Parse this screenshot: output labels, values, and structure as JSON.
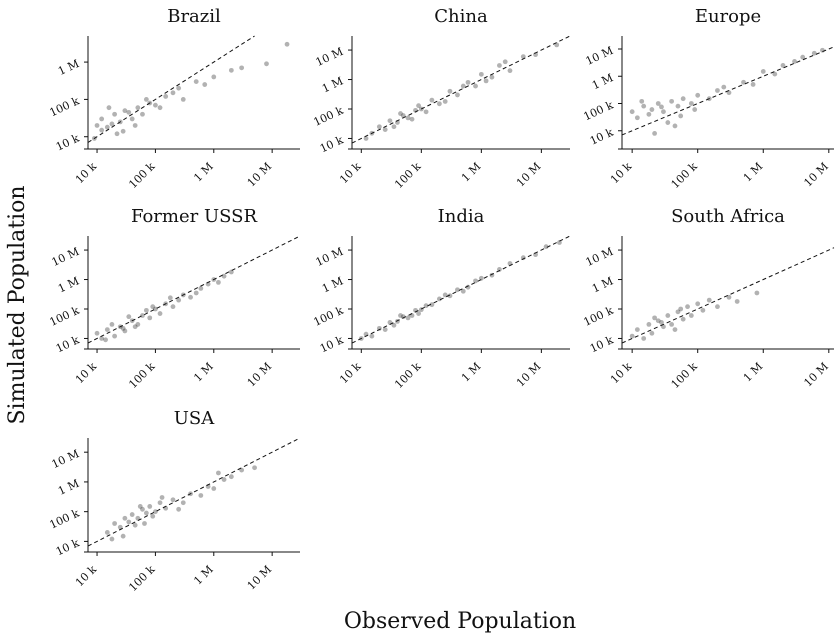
{
  "figure": {
    "xlabel": "Observed Population",
    "ylabel": "Simulated Population"
  },
  "chart_data": [
    {
      "type": "scatter",
      "title": "Brazil",
      "xscale": "log",
      "yscale": "log",
      "xlim": [
        7000,
        30000000
      ],
      "ylim": [
        6000,
        5000000
      ],
      "xticks": [
        10000,
        100000,
        1000000,
        10000000
      ],
      "xticklabels": [
        "10 k",
        "100 k",
        "1 M",
        "10 M"
      ],
      "yticks": [
        10000,
        100000,
        1000000
      ],
      "yticklabels": [
        "10 k",
        "100 k",
        "1 M"
      ],
      "reference_line": "y = x (dashed)",
      "points": [
        [
          10000,
          20000
        ],
        [
          12000,
          30000
        ],
        [
          15000,
          18000
        ],
        [
          20000,
          40000
        ],
        [
          25000,
          25000
        ],
        [
          30000,
          50000
        ],
        [
          40000,
          30000
        ],
        [
          50000,
          60000
        ],
        [
          60000,
          40000
        ],
        [
          80000,
          80000
        ],
        [
          100000,
          70000
        ],
        [
          150000,
          120000
        ],
        [
          200000,
          150000
        ],
        [
          300000,
          100000
        ],
        [
          500000,
          300000
        ],
        [
          1000000,
          400000
        ],
        [
          3000000,
          700000
        ],
        [
          8000000,
          900000
        ],
        [
          18000000,
          3000000
        ],
        [
          12000,
          15000
        ],
        [
          18000,
          22000
        ],
        [
          22000,
          12000
        ],
        [
          35000,
          45000
        ],
        [
          45000,
          20000
        ],
        [
          70000,
          100000
        ],
        [
          120000,
          60000
        ],
        [
          250000,
          200000
        ],
        [
          700000,
          250000
        ],
        [
          2000000,
          600000
        ],
        [
          16000,
          60000
        ],
        [
          9000,
          9000
        ],
        [
          28000,
          14000
        ]
      ]
    },
    {
      "type": "scatter",
      "title": "China",
      "xscale": "log",
      "yscale": "log",
      "xlim": [
        7000,
        30000000
      ],
      "ylim": [
        6000,
        30000000
      ],
      "xticks": [
        10000,
        100000,
        1000000,
        10000000
      ],
      "xticklabels": [
        "10 k",
        "100 k",
        "1 M",
        "10 M"
      ],
      "yticks": [
        10000,
        100000,
        1000000,
        10000000
      ],
      "yticklabels": [
        "10 k",
        "100 k",
        "1 M",
        "10 M"
      ],
      "reference_line": "y = x (dashed)",
      "points": [
        [
          12000,
          10000
        ],
        [
          15000,
          15000
        ],
        [
          20000,
          25000
        ],
        [
          25000,
          20000
        ],
        [
          30000,
          40000
        ],
        [
          40000,
          35000
        ],
        [
          50000,
          60000
        ],
        [
          60000,
          50000
        ],
        [
          80000,
          90000
        ],
        [
          100000,
          100000
        ],
        [
          120000,
          80000
        ],
        [
          150000,
          200000
        ],
        [
          200000,
          150000
        ],
        [
          300000,
          400000
        ],
        [
          400000,
          300000
        ],
        [
          600000,
          800000
        ],
        [
          800000,
          600000
        ],
        [
          1000000,
          1500000
        ],
        [
          1500000,
          1200000
        ],
        [
          2000000,
          3000000
        ],
        [
          3000000,
          2000000
        ],
        [
          5000000,
          6000000
        ],
        [
          8000000,
          7000000
        ],
        [
          18000000,
          15000000
        ],
        [
          35000,
          25000
        ],
        [
          70000,
          45000
        ],
        [
          250000,
          180000
        ],
        [
          500000,
          600000
        ],
        [
          1200000,
          900000
        ],
        [
          45000,
          70000
        ],
        [
          90000,
          130000
        ],
        [
          2500000,
          4000000
        ]
      ]
    },
    {
      "type": "scatter",
      "title": "Europe",
      "xscale": "log",
      "yscale": "log",
      "xlim": [
        7000,
        12000000
      ],
      "ylim": [
        3000,
        30000000
      ],
      "xticks": [
        10000,
        100000,
        1000000,
        10000000
      ],
      "xticklabels": [
        "10 k",
        "100 k",
        "1 M",
        "10 M"
      ],
      "yticks": [
        10000,
        100000,
        1000000,
        10000000
      ],
      "yticklabels": [
        "10 k",
        "100 k",
        "1 M",
        "10 M"
      ],
      "reference_line": "y = x (dashed)",
      "points": [
        [
          10000,
          50000
        ],
        [
          12000,
          30000
        ],
        [
          15000,
          80000
        ],
        [
          18000,
          40000
        ],
        [
          20000,
          60000
        ],
        [
          25000,
          100000
        ],
        [
          30000,
          50000
        ],
        [
          40000,
          120000
        ],
        [
          50000,
          80000
        ],
        [
          60000,
          150000
        ],
        [
          80000,
          100000
        ],
        [
          100000,
          200000
        ],
        [
          150000,
          150000
        ],
        [
          200000,
          300000
        ],
        [
          300000,
          250000
        ],
        [
          500000,
          600000
        ],
        [
          700000,
          500000
        ],
        [
          1000000,
          1500000
        ],
        [
          2000000,
          2500000
        ],
        [
          4000000,
          5000000
        ],
        [
          8000000,
          9000000
        ],
        [
          35000,
          20000
        ],
        [
          45000,
          15000
        ],
        [
          22000,
          8000
        ],
        [
          90000,
          60000
        ],
        [
          250000,
          400000
        ],
        [
          1500000,
          1200000
        ],
        [
          14000,
          120000
        ],
        [
          28000,
          75000
        ],
        [
          55000,
          35000
        ],
        [
          3000000,
          3500000
        ],
        [
          6000000,
          7000000
        ]
      ]
    },
    {
      "type": "scatter",
      "title": "Former USSR",
      "xscale": "log",
      "yscale": "log",
      "xlim": [
        7000,
        30000000
      ],
      "ylim": [
        6000,
        30000000
      ],
      "xticks": [
        10000,
        100000,
        1000000,
        10000000
      ],
      "xticklabels": [
        "10 k",
        "100 k",
        "1 M",
        "10 M"
      ],
      "yticks": [
        10000,
        100000,
        1000000,
        10000000
      ],
      "yticklabels": [
        "10 k",
        "100 k",
        "1 M",
        "10 M"
      ],
      "reference_line": "y = x (dashed)",
      "points": [
        [
          10000,
          15000
        ],
        [
          12000,
          10000
        ],
        [
          15000,
          20000
        ],
        [
          20000,
          12000
        ],
        [
          25000,
          25000
        ],
        [
          30000,
          18000
        ],
        [
          40000,
          40000
        ],
        [
          50000,
          30000
        ],
        [
          60000,
          60000
        ],
        [
          80000,
          50000
        ],
        [
          100000,
          100000
        ],
        [
          120000,
          70000
        ],
        [
          150000,
          150000
        ],
        [
          200000,
          120000
        ],
        [
          300000,
          300000
        ],
        [
          400000,
          250000
        ],
        [
          600000,
          500000
        ],
        [
          800000,
          700000
        ],
        [
          1000000,
          1000000
        ],
        [
          1500000,
          1300000
        ],
        [
          2000000,
          1800000
        ],
        [
          18000,
          30000
        ],
        [
          35000,
          55000
        ],
        [
          70000,
          90000
        ],
        [
          250000,
          200000
        ],
        [
          500000,
          350000
        ],
        [
          45000,
          25000
        ],
        [
          90000,
          120000
        ],
        [
          14000,
          9000
        ],
        [
          28000,
          22000
        ],
        [
          180000,
          240000
        ],
        [
          1200000,
          800000
        ]
      ]
    },
    {
      "type": "scatter",
      "title": "India",
      "xscale": "log",
      "yscale": "log",
      "xlim": [
        7000,
        30000000
      ],
      "ylim": [
        6000,
        30000000
      ],
      "xticks": [
        10000,
        100000,
        1000000,
        10000000
      ],
      "xticklabels": [
        "10 k",
        "100 k",
        "1 M",
        "10 M"
      ],
      "yticks": [
        10000,
        100000,
        1000000,
        10000000
      ],
      "yticklabels": [
        "10 k",
        "100 k",
        "1 M",
        "10 M"
      ],
      "reference_line": "y = x (dashed)",
      "points": [
        [
          10000,
          10000
        ],
        [
          12000,
          14000
        ],
        [
          15000,
          12000
        ],
        [
          20000,
          22000
        ],
        [
          25000,
          20000
        ],
        [
          30000,
          35000
        ],
        [
          40000,
          38000
        ],
        [
          50000,
          55000
        ],
        [
          60000,
          50000
        ],
        [
          80000,
          90000
        ],
        [
          100000,
          95000
        ],
        [
          120000,
          130000
        ],
        [
          150000,
          140000
        ],
        [
          200000,
          220000
        ],
        [
          300000,
          280000
        ],
        [
          400000,
          450000
        ],
        [
          600000,
          550000
        ],
        [
          800000,
          900000
        ],
        [
          1000000,
          1100000
        ],
        [
          1500000,
          1400000
        ],
        [
          2000000,
          2200000
        ],
        [
          3000000,
          3500000
        ],
        [
          5000000,
          5500000
        ],
        [
          8000000,
          7000000
        ],
        [
          12000000,
          13000000
        ],
        [
          20000000,
          18000000
        ],
        [
          35000,
          28000
        ],
        [
          70000,
          60000
        ],
        [
          250000,
          300000
        ],
        [
          500000,
          400000
        ],
        [
          45000,
          60000
        ],
        [
          90000,
          70000
        ]
      ]
    },
    {
      "type": "scatter",
      "title": "South Africa",
      "xscale": "log",
      "yscale": "log",
      "xlim": [
        7000,
        12000000
      ],
      "ylim": [
        6000,
        30000000
      ],
      "xticks": [
        10000,
        100000,
        1000000,
        10000000
      ],
      "xticklabels": [
        "10 k",
        "100 k",
        "1 M",
        "10 M"
      ],
      "yticks": [
        10000,
        100000,
        1000000,
        10000000
      ],
      "yticklabels": [
        "10 k",
        "100 k",
        "1 M",
        "10 M"
      ],
      "reference_line": "y = x (dashed)",
      "points": [
        [
          10000,
          12000
        ],
        [
          12000,
          20000
        ],
        [
          15000,
          10000
        ],
        [
          18000,
          30000
        ],
        [
          20000,
          15000
        ],
        [
          25000,
          40000
        ],
        [
          30000,
          25000
        ],
        [
          35000,
          60000
        ],
        [
          40000,
          30000
        ],
        [
          50000,
          80000
        ],
        [
          60000,
          45000
        ],
        [
          70000,
          120000
        ],
        [
          80000,
          60000
        ],
        [
          100000,
          150000
        ],
        [
          120000,
          90000
        ],
        [
          150000,
          200000
        ],
        [
          200000,
          120000
        ],
        [
          300000,
          250000
        ],
        [
          400000,
          180000
        ],
        [
          800000,
          350000
        ],
        [
          22000,
          50000
        ],
        [
          45000,
          20000
        ],
        [
          55000,
          100000
        ],
        [
          28000,
          35000
        ]
      ]
    },
    {
      "type": "scatter",
      "title": "USA",
      "xscale": "log",
      "yscale": "log",
      "xlim": [
        7000,
        30000000
      ],
      "ylim": [
        6000,
        30000000
      ],
      "xticks": [
        10000,
        100000,
        1000000,
        10000000
      ],
      "xticklabels": [
        "10 k",
        "100 k",
        "1 M",
        "10 M"
      ],
      "yticks": [
        10000,
        100000,
        1000000,
        10000000
      ],
      "yticklabels": [
        "10 k",
        "100 k",
        "1 M",
        "10 M"
      ],
      "reference_line": "y = x (dashed)",
      "points": [
        [
          15000,
          20000
        ],
        [
          20000,
          40000
        ],
        [
          25000,
          30000
        ],
        [
          30000,
          60000
        ],
        [
          35000,
          45000
        ],
        [
          40000,
          80000
        ],
        [
          50000,
          60000
        ],
        [
          60000,
          120000
        ],
        [
          70000,
          90000
        ],
        [
          80000,
          150000
        ],
        [
          100000,
          100000
        ],
        [
          120000,
          200000
        ],
        [
          150000,
          130000
        ],
        [
          200000,
          250000
        ],
        [
          300000,
          200000
        ],
        [
          400000,
          400000
        ],
        [
          600000,
          350000
        ],
        [
          800000,
          700000
        ],
        [
          1000000,
          600000
        ],
        [
          1500000,
          1200000
        ],
        [
          2000000,
          1500000
        ],
        [
          3000000,
          2500000
        ],
        [
          5000000,
          3000000
        ],
        [
          45000,
          35000
        ],
        [
          90000,
          70000
        ],
        [
          55000,
          150000
        ],
        [
          250000,
          120000
        ],
        [
          1200000,
          2000000
        ],
        [
          18000,
          12000
        ],
        [
          65000,
          40000
        ],
        [
          130000,
          300000
        ],
        [
          28000,
          15000
        ]
      ]
    }
  ]
}
